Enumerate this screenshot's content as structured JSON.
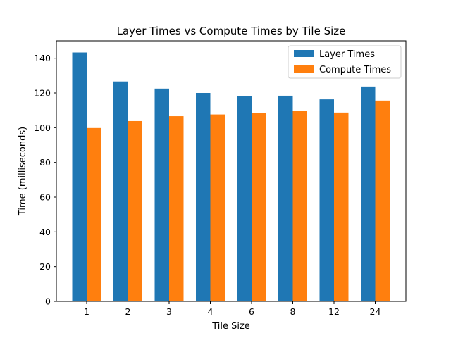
{
  "chart_data": {
    "type": "bar",
    "title": "Layer Times vs Compute Times by Tile Size",
    "xlabel": "Tile Size",
    "ylabel": "Time (milliseconds)",
    "categories": [
      "1",
      "2",
      "3",
      "4",
      "6",
      "8",
      "12",
      "24"
    ],
    "series": [
      {
        "name": "Layer Times",
        "color": "#1f77b4",
        "values": [
          143.3,
          126.6,
          122.5,
          120.0,
          118.1,
          118.4,
          116.3,
          123.7
        ]
      },
      {
        "name": "Compute Times",
        "color": "#ff7f0e",
        "values": [
          99.8,
          103.8,
          106.6,
          107.6,
          108.3,
          109.8,
          108.7,
          115.6
        ]
      }
    ],
    "ylim": [
      0,
      150
    ],
    "yticks": [
      0,
      20,
      40,
      60,
      80,
      100,
      120,
      140
    ],
    "grid": false,
    "legend_position": "top-right"
  }
}
